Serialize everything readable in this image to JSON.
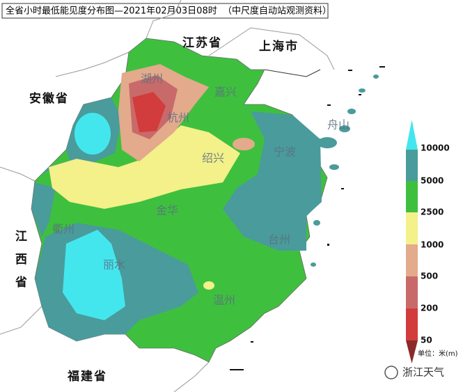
{
  "title": "全省小时最低能见度分布图—2021年02月03日08时",
  "subtitle": "（中尺度自动站观测资料）",
  "provinces": [
    "江苏省",
    "上海市",
    "安徽省",
    "江西省",
    "福建省"
  ],
  "cities": [
    "湖州",
    "嘉兴",
    "杭州",
    "绍兴",
    "宁波",
    "舟山",
    "衢州",
    "金华",
    "台州",
    "丽水",
    "温州"
  ],
  "legend": {
    "values": [
      10000,
      5000,
      2500,
      1000,
      500,
      200,
      50
    ],
    "unit": "单位：米(m)"
  },
  "watermark": "浙江天气"
}
